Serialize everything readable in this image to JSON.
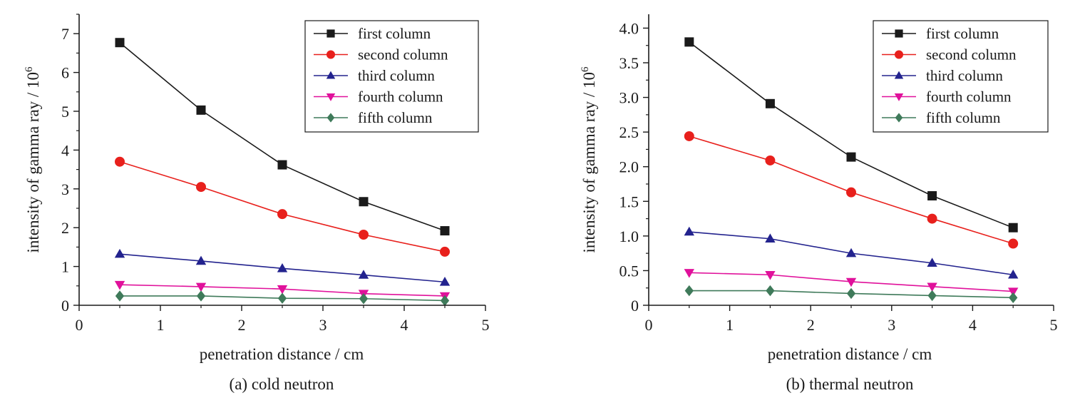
{
  "chart_data": [
    {
      "type": "line",
      "caption": "(a) cold neutron",
      "xlabel": "penetration distance / cm",
      "ylabel": "intensity of gamma ray / 10",
      "ylabel_exponent": "6",
      "xlim": [
        0,
        5
      ],
      "ylim": [
        0,
        7.5
      ],
      "xticks": [
        0,
        1,
        2,
        3,
        4,
        5
      ],
      "xtick_labels": [
        "0",
        "1",
        "2",
        "3",
        "4",
        "5"
      ],
      "yticks": [
        0,
        1,
        2,
        3,
        4,
        5,
        6,
        7
      ],
      "ytick_labels": [
        "0",
        "1",
        "2",
        "3",
        "4",
        "5",
        "6",
        "7"
      ],
      "grid": false,
      "legend_position": "top-right",
      "x": [
        0.5,
        1.5,
        2.5,
        3.5,
        4.5
      ],
      "series": [
        {
          "name": "first column",
          "color": "#1a1a1a",
          "marker": "square",
          "values": [
            6.77,
            5.03,
            3.62,
            2.67,
            1.92
          ]
        },
        {
          "name": "second column",
          "color": "#e8201c",
          "marker": "circle",
          "values": [
            3.7,
            3.05,
            2.35,
            1.82,
            1.38
          ]
        },
        {
          "name": "third column",
          "color": "#23238e",
          "marker": "triangle-up",
          "values": [
            1.32,
            1.14,
            0.95,
            0.78,
            0.6
          ]
        },
        {
          "name": "fourth column",
          "color": "#e0119b",
          "marker": "triangle-down",
          "values": [
            0.53,
            0.48,
            0.42,
            0.3,
            0.24
          ]
        },
        {
          "name": "fifth column",
          "color": "#3f7a5a",
          "marker": "diamond",
          "values": [
            0.24,
            0.24,
            0.18,
            0.17,
            0.12
          ]
        }
      ]
    },
    {
      "type": "line",
      "caption": "(b) thermal neutron",
      "xlabel": "penetration distance / cm",
      "ylabel": "intensity of gamma ray / 10",
      "ylabel_exponent": "6",
      "xlim": [
        0,
        5
      ],
      "ylim": [
        0,
        4.2
      ],
      "xticks": [
        0,
        1,
        2,
        3,
        4,
        5
      ],
      "xtick_labels": [
        "0",
        "1",
        "2",
        "3",
        "4",
        "5"
      ],
      "yticks": [
        0,
        0.5,
        1.0,
        1.5,
        2.0,
        2.5,
        3.0,
        3.5,
        4.0
      ],
      "ytick_labels": [
        "0",
        "0.5",
        "1.0",
        "1.5",
        "2.0",
        "2.5",
        "3.0",
        "3.5",
        "4.0"
      ],
      "grid": false,
      "legend_position": "top-right",
      "x": [
        0.5,
        1.5,
        2.5,
        3.5,
        4.5
      ],
      "series": [
        {
          "name": "first column",
          "color": "#1a1a1a",
          "marker": "square",
          "values": [
            3.8,
            2.91,
            2.14,
            1.58,
            1.12
          ]
        },
        {
          "name": "second column",
          "color": "#e8201c",
          "marker": "circle",
          "values": [
            2.44,
            2.09,
            1.63,
            1.25,
            0.89
          ]
        },
        {
          "name": "third column",
          "color": "#23238e",
          "marker": "triangle-up",
          "values": [
            1.06,
            0.96,
            0.75,
            0.61,
            0.44
          ]
        },
        {
          "name": "fourth column",
          "color": "#e0119b",
          "marker": "triangle-down",
          "values": [
            0.47,
            0.44,
            0.34,
            0.27,
            0.2
          ]
        },
        {
          "name": "fifth column",
          "color": "#3f7a5a",
          "marker": "diamond",
          "values": [
            0.21,
            0.21,
            0.17,
            0.14,
            0.11
          ]
        }
      ]
    }
  ]
}
